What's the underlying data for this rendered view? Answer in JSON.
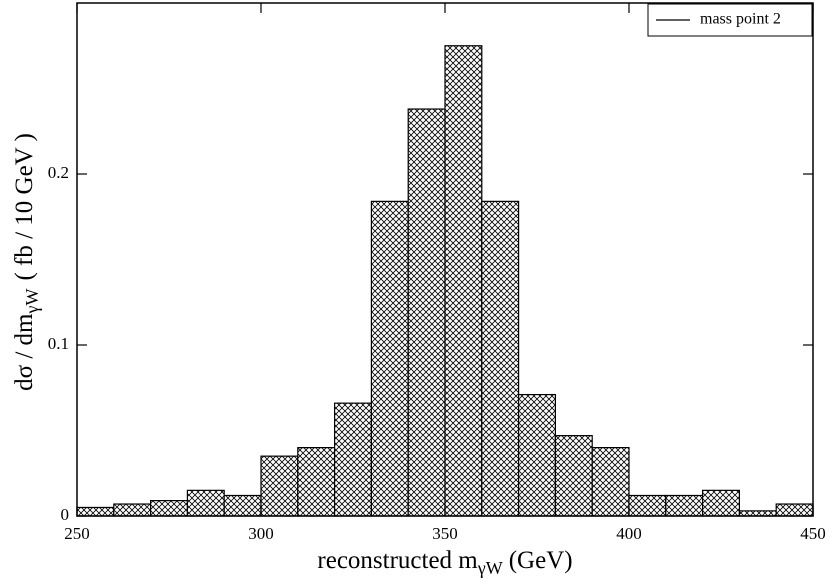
{
  "chart_data": {
    "type": "histogram",
    "xlabel": {
      "main": "reconstructed m",
      "sub": "γW",
      "rest": "(GeV)"
    },
    "ylabel": {
      "main": "dσ / dm",
      "sub": "γW",
      "rest": "( fb / 10 GeV )"
    },
    "bins": [
      250,
      260,
      270,
      280,
      290,
      300,
      310,
      320,
      330,
      340,
      350,
      360,
      370,
      380,
      390,
      400,
      410,
      420,
      430,
      440,
      450
    ],
    "series": [
      {
        "name": "mass point 2",
        "color": "#000000",
        "values": [
          0.005,
          0.007,
          0.009,
          0.015,
          0.012,
          0.035,
          0.04,
          0.066,
          0.184,
          0.238,
          0.275,
          0.184,
          0.071,
          0.047,
          0.04,
          0.012,
          0.012,
          0.015,
          0.003,
          0.007
        ]
      }
    ],
    "xlim": [
      250,
      450
    ],
    "xticks": [
      250,
      300,
      350,
      400,
      450
    ],
    "ylim": [
      0,
      0.3
    ],
    "yticks": [
      0,
      0.1,
      0.2
    ],
    "legend": "top-right",
    "fill": "crosshatch"
  }
}
